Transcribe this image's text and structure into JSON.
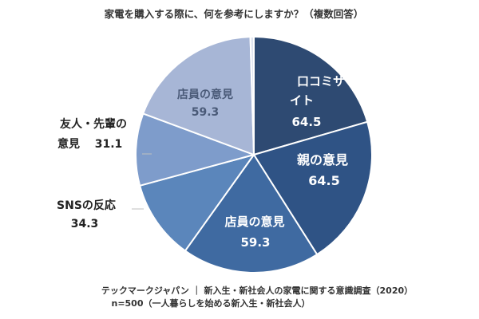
{
  "chart_data": {
    "type": "pie",
    "title": "家電を購入する際に、何を参考にしますか？（複数回答）",
    "slices": [
      {
        "label": "口コミサイト",
        "value": 64.5,
        "color": "#2e4a72"
      },
      {
        "label": "親の意見",
        "value": 64.5,
        "color": "#2f5385"
      },
      {
        "label": "店員の意見",
        "value": 59.3,
        "color": "#3f6aa1"
      },
      {
        "label": "SNSの反応",
        "value": 34.3,
        "color": "#5b86bb"
      },
      {
        "label": "友人・先輩の意見",
        "value": 31.1,
        "color": "#7e9ccb"
      },
      {
        "label": "店員の意見",
        "value": 59.3,
        "color": "#a7b6d6"
      },
      {
        "label": "",
        "value": 1.5,
        "color": "#dfe4ef"
      }
    ],
    "labels": {
      "s0": {
        "line1": "口コミサ",
        "line2": "イト",
        "value": "64.5"
      },
      "s1": {
        "line1": "親の意見",
        "value": "64.5"
      },
      "s2": {
        "line1": "店員の意見",
        "value": "59.3"
      },
      "s3": {
        "line1": "SNSの反応",
        "value": "34.3"
      },
      "s4": {
        "line1": "友人・先輩の",
        "line2": "意見",
        "value": "31.1"
      },
      "s5": {
        "line1": "店員の意見",
        "value": "59.3"
      }
    },
    "source_line1": "テックマークジャパン ｜ 新入生・新社会人の家電に関する意識調査（2020）",
    "source_line2": "n=500（一人暮らしを始める新入生・新社会人）"
  }
}
